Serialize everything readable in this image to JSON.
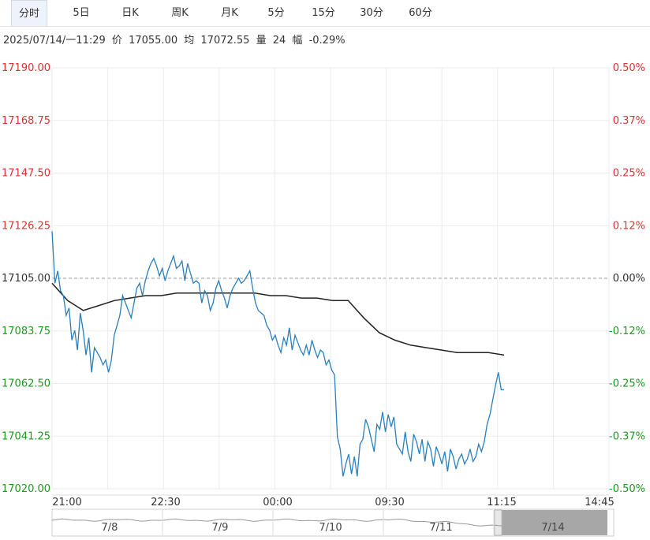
{
  "tabs": [
    "分时",
    "5日",
    "日K",
    "周K",
    "月K",
    "5分",
    "15分",
    "30分",
    "60分"
  ],
  "active_tab": "分时",
  "info": {
    "datetime": "2025/07/14/一11:29",
    "price_label": "价",
    "price": "17055.00",
    "avg_label": "均",
    "avg": "17072.55",
    "vol_label": "量",
    "vol": "24",
    "range_label": "幅",
    "range": "-0.29%"
  },
  "colors": {
    "up": "#e0302e",
    "down": "#1a9a1a",
    "neutral": "#333333",
    "price_line": "#2a7fbd",
    "avg_line": "#222222",
    "grid": "#ebebeb"
  },
  "chart_data": {
    "type": "line",
    "y_ticks": [
      "17190.00",
      "17168.75",
      "17147.50",
      "17126.25",
      "17105.00",
      "17083.75",
      "17062.50",
      "17041.25",
      "17020.00"
    ],
    "pct_ticks": [
      "0.50%",
      "0.37%",
      "0.25%",
      "0.12%",
      "0.00%",
      "-0.12%",
      "-0.25%",
      "-0.37%",
      "-0.50%"
    ],
    "x_ticks": [
      "21:00",
      "22:30",
      "00:00",
      "09:30",
      "11:15",
      "14:45"
    ],
    "ylim": [
      17020,
      17190
    ],
    "reference": 17105,
    "series": [
      {
        "values": [
          17124,
          17103,
          17108,
          17100,
          17098,
          17090,
          17093,
          17080,
          17084,
          17076,
          17091,
          17084,
          17074,
          17081,
          17067,
          17077,
          17075,
          17073,
          17070,
          17072,
          17067,
          17072,
          17082,
          17086,
          17090,
          17098,
          17095,
          17092,
          17089,
          17095,
          17101,
          17103,
          17098,
          17104,
          17108,
          17111,
          17113,
          17110,
          17106,
          17109,
          17104,
          17108,
          17111,
          17114,
          17109,
          17110,
          17112,
          17104,
          17111,
          17107,
          17103,
          17104,
          17103,
          17095,
          17100,
          17098,
          17092,
          17095,
          17101,
          17104,
          17100,
          17097,
          17093,
          17098,
          17101,
          17103,
          17105,
          17103,
          17104,
          17106,
          17108,
          17101,
          17095,
          17092,
          17091,
          17090,
          17086,
          17084,
          17080,
          17082,
          17078,
          17075,
          17081,
          17078,
          17085,
          17076,
          17082,
          17079,
          17076,
          17074,
          17078,
          17074,
          17080,
          17076,
          17073,
          17076,
          17075,
          17070,
          17072,
          17068,
          17066,
          17041,
          17036,
          17025,
          17030,
          17034,
          17026,
          17033,
          17025,
          17038,
          17040,
          17048,
          17045,
          17040,
          17035,
          17046,
          17044,
          17051,
          17043,
          17050,
          17045,
          17049,
          17038,
          17036,
          17034,
          17043,
          17035,
          17031,
          17042,
          17039,
          17034,
          17040,
          17031,
          17039,
          17036,
          17029,
          17037,
          17034,
          17030,
          17035,
          17027,
          17036,
          17033,
          17028,
          17032,
          17034,
          17030,
          17032,
          17036,
          17031,
          17033,
          17038,
          17035,
          17039,
          17046,
          17050,
          17056,
          17062,
          17067,
          17060,
          17060
        ],
        "x_range": [
          "21:00",
          "11:15"
        ]
      },
      {
        "values": [
          17103,
          17096,
          17092,
          17094,
          17096,
          17097,
          17098,
          17098,
          17099,
          17099,
          17099,
          17099,
          17099,
          17099,
          17098,
          17098,
          17097,
          17097,
          17096,
          17096,
          17089,
          17083,
          17080,
          17078,
          17077,
          17076,
          17075,
          17075,
          17075,
          17074
        ],
        "x_range": [
          "21:00",
          "11:15"
        ]
      }
    ],
    "overview_labels": [
      "7/8",
      "7/9",
      "7/10",
      "7/11",
      "7/14"
    ]
  }
}
